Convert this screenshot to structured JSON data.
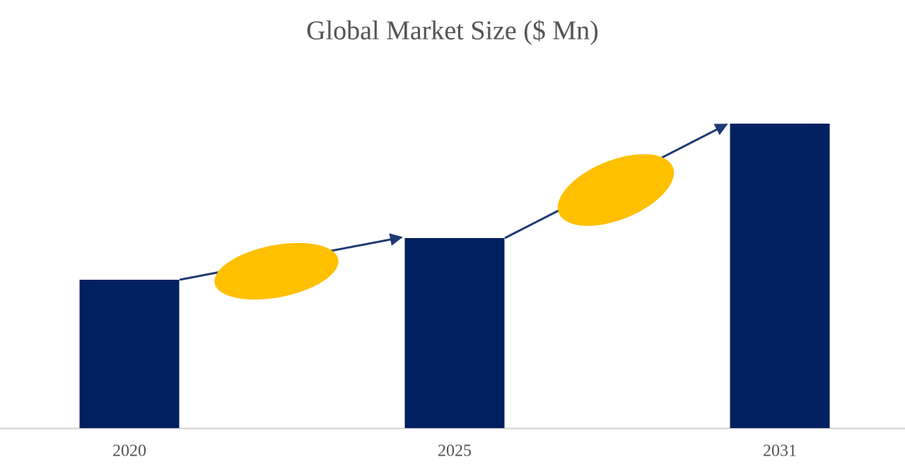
{
  "chart_data": {
    "type": "bar",
    "title": "Global Market Size ($ Mn)",
    "categories": [
      "2020",
      "2025",
      "2031"
    ],
    "values": [
      210,
      269,
      431
    ],
    "color": "#002060",
    "ylim": [
      0,
      500
    ]
  }
}
